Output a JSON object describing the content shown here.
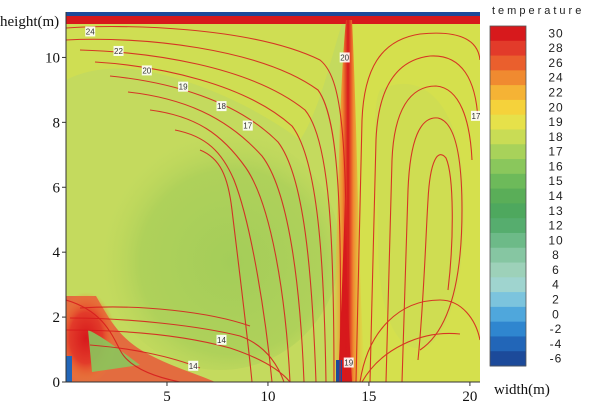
{
  "chart_data": {
    "type": "heatmap",
    "title": "",
    "xlabel": "width(m)",
    "ylabel": "height(m)",
    "xlim": [
      0,
      20.5
    ],
    "ylim": [
      0,
      11.4
    ],
    "x_ticks": [
      {
        "value": 5,
        "label": "5"
      },
      {
        "value": 10,
        "label": "10"
      },
      {
        "value": 15,
        "label": "15"
      },
      {
        "value": 20,
        "label": "20"
      }
    ],
    "y_ticks": [
      {
        "value": 0,
        "label": "0"
      },
      {
        "value": 2,
        "label": "2"
      },
      {
        "value": 4,
        "label": "4"
      },
      {
        "value": 6,
        "label": "6"
      },
      {
        "value": 8,
        "label": "8"
      },
      {
        "value": 10,
        "label": "10"
      }
    ],
    "colorbar": {
      "title": "temperature",
      "levels": [
        {
          "value": 30,
          "label": "30",
          "color": "#d7191c"
        },
        {
          "value": 28,
          "label": "28",
          "color": "#e23b2a"
        },
        {
          "value": 26,
          "label": "26",
          "color": "#ea5f2d"
        },
        {
          "value": 24,
          "label": "24",
          "color": "#f08a30"
        },
        {
          "value": 22,
          "label": "22",
          "color": "#f5b335"
        },
        {
          "value": 20,
          "label": "20",
          "color": "#f5d23b"
        },
        {
          "value": 19,
          "label": "19",
          "color": "#e6e14a"
        },
        {
          "value": 18,
          "label": "18",
          "color": "#c9dc55"
        },
        {
          "value": 17,
          "label": "17",
          "color": "#a8d25a"
        },
        {
          "value": 16,
          "label": "16",
          "color": "#8ac75c"
        },
        {
          "value": 15,
          "label": "15",
          "color": "#6dba5a"
        },
        {
          "value": 14,
          "label": "14",
          "color": "#5aae58"
        },
        {
          "value": 13,
          "label": "13",
          "color": "#4ea85e"
        },
        {
          "value": 12,
          "label": "12",
          "color": "#56ad6e"
        },
        {
          "value": 10,
          "label": "10",
          "color": "#6dba88"
        },
        {
          "value": 8,
          "label": "8",
          "color": "#86c6a2"
        },
        {
          "value": 6,
          "label": "6",
          "color": "#9dd1b9"
        },
        {
          "value": 4,
          "label": "4",
          "color": "#9fd4cf"
        },
        {
          "value": 2,
          "label": "2",
          "color": "#7cc4dd"
        },
        {
          "value": 0,
          "label": "0",
          "color": "#4fa7dc"
        },
        {
          "value": -2,
          "label": "-2",
          "color": "#2f86cf"
        },
        {
          "value": -4,
          "label": "-4",
          "color": "#2266b8"
        },
        {
          "value": -6,
          "label": "-6",
          "color": "#1c4a9a"
        }
      ]
    },
    "field": {
      "background_color": "#c4da5e",
      "region_colors": [
        "#a8cf58",
        "#d9e24a",
        "#e9dd3f",
        "#d7191c",
        "#f08a30"
      ]
    },
    "contour_lines": [
      {
        "label": "24",
        "x": 1.2,
        "y": 10.8
      },
      {
        "label": "22",
        "x": 2.6,
        "y": 10.2
      },
      {
        "label": "20",
        "x": 4.0,
        "y": 9.6
      },
      {
        "label": "19",
        "x": 5.8,
        "y": 9.1
      },
      {
        "label": "18",
        "x": 7.7,
        "y": 8.5
      },
      {
        "label": "17",
        "x": 9.0,
        "y": 7.9
      },
      {
        "label": "14",
        "x": 7.7,
        "y": 1.3
      },
      {
        "label": "14",
        "x": 6.3,
        "y": 0.5
      },
      {
        "label": "20",
        "x": 13.8,
        "y": 10.0
      },
      {
        "label": "19",
        "x": 14.0,
        "y": 0.6
      },
      {
        "label": "17",
        "x": 20.3,
        "y": 8.2
      }
    ]
  }
}
